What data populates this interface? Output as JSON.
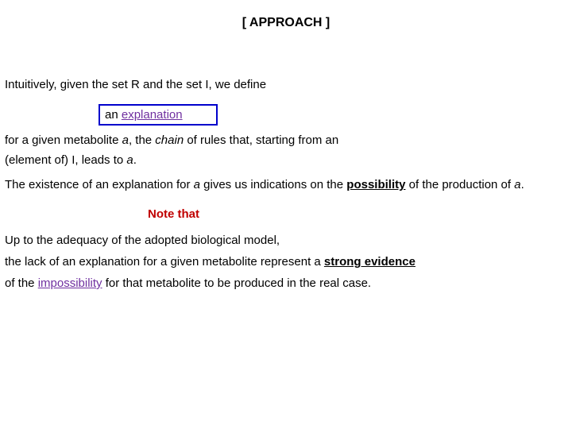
{
  "colors": {
    "text": "#000000",
    "purple": "#7030a0",
    "red": "#c00000",
    "blue_border": "#0000cc",
    "background": "#ffffff"
  },
  "title": {
    "text": "[ APPROACH ]"
  },
  "intro": {
    "text": "Intuitively, given the set R and the set I, we define"
  },
  "box": {
    "prefix": "an ",
    "word": "explanation",
    "border_color": "#0000cc",
    "word_color": "#7030a0"
  },
  "def": {
    "part1": "for a given metabolite ",
    "a1": "a",
    "part2": ", the ",
    "chain": "chain",
    "part3": " of rules that, starting from an",
    "part4": " (element of) I, leads to ",
    "a2": "a",
    "part5": "."
  },
  "existence": {
    "part1": "The existence of an explanation for ",
    "a": "a",
    "part2": " gives us indications on the ",
    "possibility": "possibility",
    "part3": " of the production of ",
    "a2": "a",
    "part4": "."
  },
  "note": {
    "label": "Note that",
    "color": "#c00000"
  },
  "adequacy": {
    "text": "Up to the adequacy of the adopted biological model,"
  },
  "lack": {
    "part1": "the lack of an explanation for a given metabolite represent a ",
    "strong_evidence": "strong evidence"
  },
  "impossibility": {
    "part1": "of the ",
    "word": "impossibility",
    "part2": " for that metabolite to be produced in the real case.",
    "word_color": "#7030a0"
  }
}
